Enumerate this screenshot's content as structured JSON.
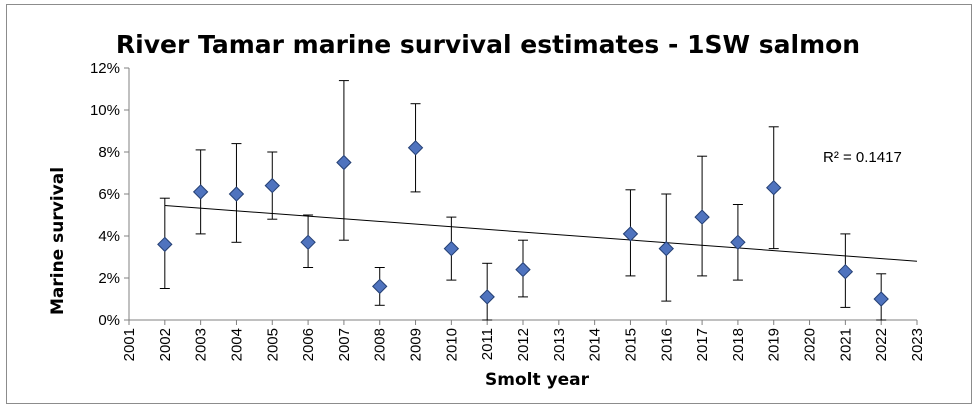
{
  "chart_data": {
    "type": "scatter",
    "title": "River Tamar marine survival estimates - 1SW salmon",
    "xlabel": "Smolt year",
    "ylabel": "Marine survival",
    "xlim": [
      2001,
      2023
    ],
    "ylim": [
      0,
      12
    ],
    "x_ticks": [
      "2001",
      "2002",
      "2003",
      "2004",
      "2005",
      "2006",
      "2007",
      "2008",
      "2009",
      "2010",
      "2011",
      "2012",
      "2013",
      "2014",
      "2015",
      "2016",
      "2017",
      "2018",
      "2019",
      "2020",
      "2021",
      "2022",
      "2023"
    ],
    "y_ticks": [
      "0%",
      "2%",
      "4%",
      "6%",
      "8%",
      "10%",
      "12%"
    ],
    "series": [
      {
        "name": "Marine survival",
        "color": "#4f73be",
        "points": [
          {
            "x": 2002,
            "y": 3.6,
            "low": 1.5,
            "high": 5.8
          },
          {
            "x": 2003,
            "y": 6.1,
            "low": 4.1,
            "high": 8.1
          },
          {
            "x": 2004,
            "y": 6.0,
            "low": 3.7,
            "high": 8.4
          },
          {
            "x": 2005,
            "y": 6.4,
            "low": 4.8,
            "high": 8.0
          },
          {
            "x": 2006,
            "y": 3.7,
            "low": 2.5,
            "high": 5.0
          },
          {
            "x": 2007,
            "y": 7.5,
            "low": 3.8,
            "high": 11.4
          },
          {
            "x": 2008,
            "y": 1.6,
            "low": 0.7,
            "high": 2.5
          },
          {
            "x": 2009,
            "y": 8.2,
            "low": 6.1,
            "high": 10.3
          },
          {
            "x": 2010,
            "y": 3.4,
            "low": 1.9,
            "high": 4.9
          },
          {
            "x": 2011,
            "y": 1.1,
            "low": 0.0,
            "high": 2.7
          },
          {
            "x": 2012,
            "y": 2.4,
            "low": 1.1,
            "high": 3.8
          },
          {
            "x": 2015,
            "y": 4.1,
            "low": 2.1,
            "high": 6.2
          },
          {
            "x": 2016,
            "y": 3.4,
            "low": 0.9,
            "high": 6.0
          },
          {
            "x": 2017,
            "y": 4.9,
            "low": 2.1,
            "high": 7.8
          },
          {
            "x": 2018,
            "y": 3.7,
            "low": 1.9,
            "high": 5.5
          },
          {
            "x": 2019,
            "y": 6.3,
            "low": 3.4,
            "high": 9.2
          },
          {
            "x": 2021,
            "y": 2.3,
            "low": 0.6,
            "high": 4.1
          },
          {
            "x": 2022,
            "y": 1.0,
            "low": 0.0,
            "high": 2.2
          }
        ]
      }
    ],
    "trendline": {
      "type": "linear",
      "x_start": 2002,
      "y_start": 5.45,
      "x_end": 2023,
      "y_end": 2.8
    },
    "annotation": "R² = 0.1417",
    "grid": false,
    "legend": "none"
  }
}
